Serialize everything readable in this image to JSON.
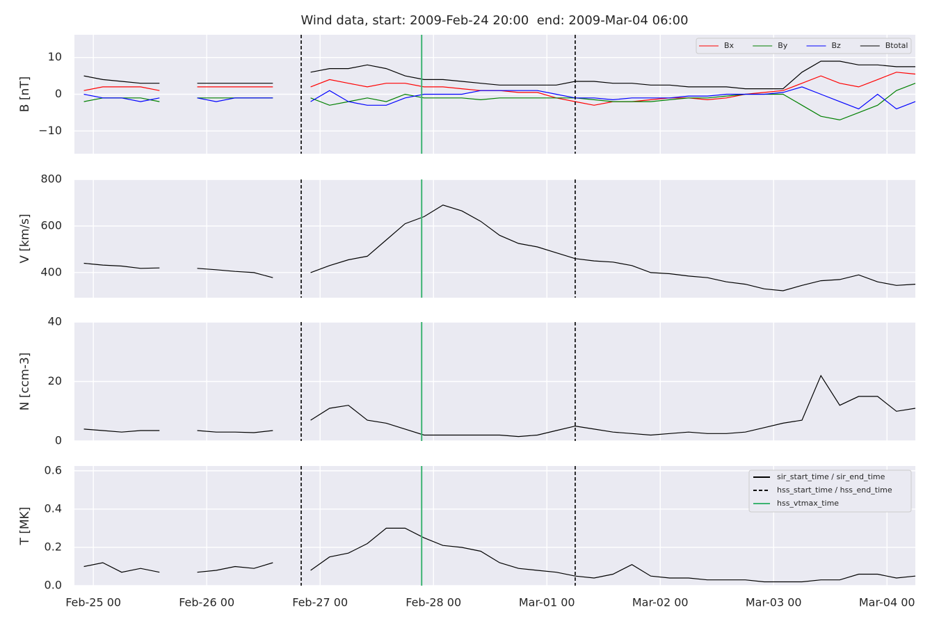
{
  "title": "Wind data, start: 2009-Feb-24 20:00  end: 2009-Mar-04 06:00",
  "xlim": [
    "2009-02-24 20:00",
    "2009-03-04 06:00"
  ],
  "xticks": [
    {
      "value": "2009-02-25 00:00",
      "label": "Feb-25 00"
    },
    {
      "value": "2009-02-26 00:00",
      "label": "Feb-26 00"
    },
    {
      "value": "2009-02-27 00:00",
      "label": "Feb-27 00"
    },
    {
      "value": "2009-02-28 00:00",
      "label": "Feb-28 00"
    },
    {
      "value": "2009-03-01 00:00",
      "label": "Mar-01 00"
    },
    {
      "value": "2009-03-02 00:00",
      "label": "Mar-02 00"
    },
    {
      "value": "2009-03-03 00:00",
      "label": "Mar-03 00"
    },
    {
      "value": "2009-03-04 00:00",
      "label": "Mar-04 00"
    }
  ],
  "x": [
    "2009-02-24 22:00",
    "2009-02-25 02:00",
    "2009-02-25 06:00",
    "2009-02-25 10:00",
    "2009-02-25 14:00",
    "2009-02-25 18:00",
    "2009-02-25 22:00",
    "2009-02-26 02:00",
    "2009-02-26 06:00",
    "2009-02-26 10:00",
    "2009-02-26 14:00",
    "2009-02-26 18:00",
    "2009-02-26 22:00",
    "2009-02-27 02:00",
    "2009-02-27 06:00",
    "2009-02-27 10:00",
    "2009-02-27 14:00",
    "2009-02-27 18:00",
    "2009-02-27 22:00",
    "2009-02-28 02:00",
    "2009-02-28 06:00",
    "2009-02-28 10:00",
    "2009-02-28 14:00",
    "2009-02-28 18:00",
    "2009-02-28 22:00",
    "2009-03-01 02:00",
    "2009-03-01 06:00",
    "2009-03-01 10:00",
    "2009-03-01 14:00",
    "2009-03-01 18:00",
    "2009-03-01 22:00",
    "2009-03-02 02:00",
    "2009-03-02 06:00",
    "2009-03-02 10:00",
    "2009-03-02 14:00",
    "2009-03-02 18:00",
    "2009-03-02 22:00",
    "2009-03-03 02:00",
    "2009-03-03 06:00",
    "2009-03-03 10:00",
    "2009-03-03 14:00",
    "2009-03-03 18:00",
    "2009-03-03 22:00",
    "2009-03-04 02:00",
    "2009-03-04 06:00"
  ],
  "markers": [
    {
      "name": "sir_start_time / sir_end_time",
      "color": "#000000",
      "style": "solid",
      "x": []
    },
    {
      "name": "hss_start_time / hss_end_time",
      "color": "#000000",
      "style": "dashed",
      "x": [
        "2009-02-26 20:00",
        "2009-03-01 06:00"
      ]
    },
    {
      "name": "hss_vtmax_time",
      "color": "#3cb371",
      "style": "solid",
      "x": [
        "2009-02-27 21:30"
      ]
    }
  ],
  "marker_legend": "upper right",
  "chart_data": [
    {
      "type": "line",
      "ylabel": "B [nT]",
      "ylim": [
        -16.2,
        16.2
      ],
      "yticks": [
        {
          "value": -10,
          "label": "−10"
        },
        0,
        10
      ],
      "grid": true,
      "legend": "upper right",
      "series": [
        {
          "name": "Bx",
          "color": "#ff0000",
          "values": [
            1,
            2,
            2,
            2,
            1,
            null,
            2,
            2,
            2,
            2,
            2,
            null,
            2,
            4,
            3,
            2,
            3,
            3,
            2,
            2,
            1.5,
            1,
            1,
            0.5,
            0.5,
            -1,
            -2,
            -3,
            -2,
            -2,
            -1.5,
            -1,
            -1,
            -1.5,
            -1,
            0,
            0.5,
            1,
            3,
            5,
            3,
            2,
            4,
            6,
            5.5
          ]
        },
        {
          "name": "By",
          "color": "#008000",
          "values": [
            -2,
            -1,
            -1,
            -1,
            -2,
            null,
            -1,
            -1,
            -1,
            -1,
            -1,
            null,
            -1,
            -3,
            -2,
            -1,
            -2,
            0,
            -1,
            -1,
            -1,
            -1.5,
            -1,
            -1,
            -1,
            -1,
            -1,
            -1.5,
            -2,
            -2,
            -2,
            -1.5,
            -1,
            -1,
            -0.5,
            0,
            0,
            0,
            -3,
            -6,
            -7,
            -5,
            -3,
            1,
            3
          ]
        },
        {
          "name": "Bz",
          "color": "#0000ff",
          "values": [
            0,
            -1,
            -1,
            -2,
            -1,
            null,
            -1,
            -2,
            -1,
            -1,
            -1,
            null,
            -2,
            1,
            -2,
            -3,
            -3,
            -1,
            0,
            0,
            0,
            1,
            1,
            1,
            1,
            0,
            -1,
            -1,
            -1.5,
            -1,
            -1,
            -1,
            -0.5,
            -0.5,
            0,
            0,
            0,
            0.5,
            2,
            0,
            -2,
            -4,
            0,
            -4,
            -2
          ]
        },
        {
          "name": "Btotal",
          "color": "#000000",
          "values": [
            5,
            4,
            3.5,
            3,
            3,
            null,
            3,
            3,
            3,
            3,
            3,
            null,
            6,
            7,
            7,
            8,
            7,
            5,
            4,
            4,
            3.5,
            3,
            2.5,
            2.5,
            2.5,
            2.5,
            3.5,
            3.5,
            3,
            3,
            2.5,
            2.5,
            2,
            2,
            2,
            1.5,
            1.5,
            1.5,
            6,
            9,
            9,
            8,
            8,
            7.5,
            7.5
          ]
        }
      ]
    },
    {
      "type": "line",
      "ylabel": "V [km/s]",
      "ylim": [
        292,
        800
      ],
      "yticks": [
        400,
        600,
        800
      ],
      "grid": true,
      "series": [
        {
          "color": "#000000",
          "values": [
            440,
            432,
            428,
            418,
            420,
            null,
            418,
            412,
            405,
            400,
            378,
            null,
            400,
            430,
            455,
            470,
            540,
            610,
            640,
            690,
            665,
            620,
            560,
            525,
            510,
            485,
            460,
            450,
            445,
            430,
            400,
            395,
            385,
            378,
            360,
            350,
            330,
            322,
            345,
            365,
            370,
            390,
            360,
            345,
            350
          ]
        }
      ]
    },
    {
      "type": "line",
      "ylabel": "N [ccm-3]",
      "ylim": [
        0,
        40
      ],
      "yticks": [
        0,
        20,
        40
      ],
      "grid": true,
      "series": [
        {
          "color": "#000000",
          "values": [
            4,
            3.5,
            3,
            3.5,
            3.5,
            null,
            3.5,
            3,
            3,
            2.8,
            3.5,
            null,
            7,
            11,
            12,
            7,
            6,
            4,
            2,
            2,
            2,
            2,
            2,
            1.5,
            2,
            3.5,
            5,
            4,
            3,
            2.5,
            2,
            2.5,
            3,
            2.5,
            2.5,
            3,
            4.5,
            6,
            7,
            22,
            12,
            15,
            15,
            10,
            11
          ]
        }
      ]
    },
    {
      "type": "line",
      "ylabel": "T [MK]",
      "ylim": [
        0,
        0.625
      ],
      "yticks": [
        {
          "value": 0,
          "label": "0.0"
        },
        0.2,
        0.4,
        0.6
      ],
      "grid": true,
      "series": [
        {
          "color": "#000000",
          "values": [
            0.1,
            0.12,
            0.07,
            0.09,
            0.07,
            null,
            0.07,
            0.08,
            0.1,
            0.09,
            0.12,
            null,
            0.08,
            0.15,
            0.17,
            0.22,
            0.3,
            0.3,
            0.25,
            0.21,
            0.2,
            0.18,
            0.12,
            0.09,
            0.08,
            0.07,
            0.05,
            0.04,
            0.06,
            0.11,
            0.05,
            0.04,
            0.04,
            0.03,
            0.03,
            0.03,
            0.02,
            0.02,
            0.02,
            0.03,
            0.03,
            0.06,
            0.06,
            0.04,
            0.05
          ]
        }
      ]
    }
  ]
}
